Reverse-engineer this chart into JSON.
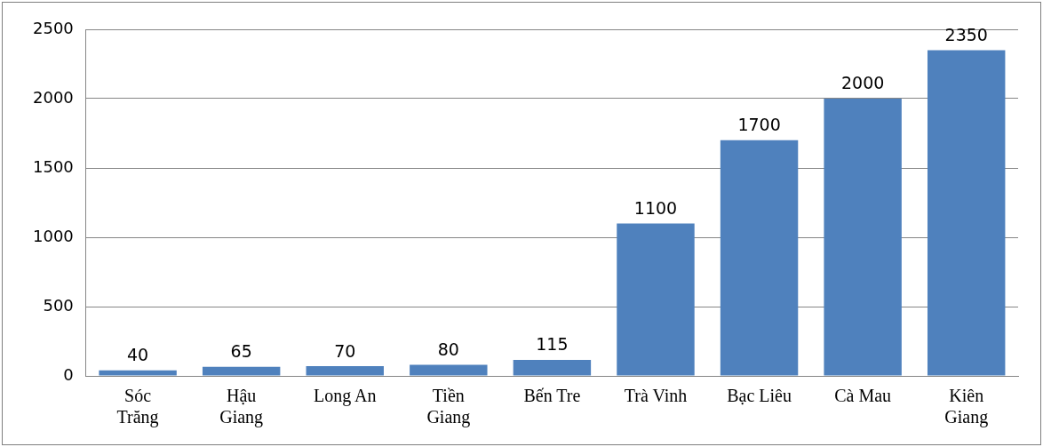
{
  "chart_data": {
    "type": "bar",
    "categories": [
      "Sóc Trăng",
      "Hậu Giang",
      "Long An",
      "Tiền Giang",
      "Bến Tre",
      "Trà Vinh",
      "Bạc Liêu",
      "Cà Mau",
      "Kiên Giang"
    ],
    "values": [
      40,
      65,
      70,
      80,
      115,
      1100,
      1700,
      2000,
      2350
    ],
    "color": "#4f81bd",
    "ylim": [
      0,
      2500
    ],
    "yticks": [
      0,
      500,
      1000,
      1500,
      2000,
      2500
    ],
    "grid": "y",
    "data_labels": true
  }
}
